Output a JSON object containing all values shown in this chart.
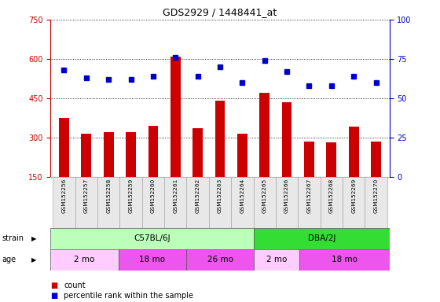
{
  "title": "GDS2929 / 1448441_at",
  "samples": [
    "GSM152256",
    "GSM152257",
    "GSM152258",
    "GSM152259",
    "GSM152260",
    "GSM152261",
    "GSM152262",
    "GSM152263",
    "GSM152264",
    "GSM152265",
    "GSM152266",
    "GSM152267",
    "GSM152268",
    "GSM152269",
    "GSM152270"
  ],
  "counts": [
    375,
    315,
    320,
    320,
    345,
    610,
    335,
    440,
    315,
    470,
    435,
    285,
    280,
    340,
    285
  ],
  "percentile_ranks": [
    68,
    63,
    62,
    62,
    64,
    76,
    64,
    70,
    60,
    74,
    67,
    58,
    58,
    64,
    60
  ],
  "ylim_left": [
    150,
    750
  ],
  "ylim_right": [
    0,
    100
  ],
  "yticks_left": [
    150,
    300,
    450,
    600,
    750
  ],
  "yticks_right": [
    0,
    25,
    50,
    75,
    100
  ],
  "bar_color": "#cc0000",
  "dot_color": "#0000cc",
  "bg_color": "#ffffff",
  "left_axis_color": "#cc0000",
  "right_axis_color": "#0000cc",
  "strain_groups": [
    {
      "label": "C57BL/6J",
      "start": 0,
      "end": 9,
      "color": "#bbffbb"
    },
    {
      "label": "DBA/2J",
      "start": 9,
      "end": 15,
      "color": "#33dd33"
    }
  ],
  "age_groups": [
    {
      "label": "2 mo",
      "start": 0,
      "end": 3,
      "color": "#ffccff"
    },
    {
      "label": "18 mo",
      "start": 3,
      "end": 6,
      "color": "#ee55ee"
    },
    {
      "label": "26 mo",
      "start": 6,
      "end": 9,
      "color": "#ee55ee"
    },
    {
      "label": "2 mo",
      "start": 9,
      "end": 11,
      "color": "#ffccff"
    },
    {
      "label": "18 mo",
      "start": 11,
      "end": 15,
      "color": "#ee55ee"
    }
  ]
}
